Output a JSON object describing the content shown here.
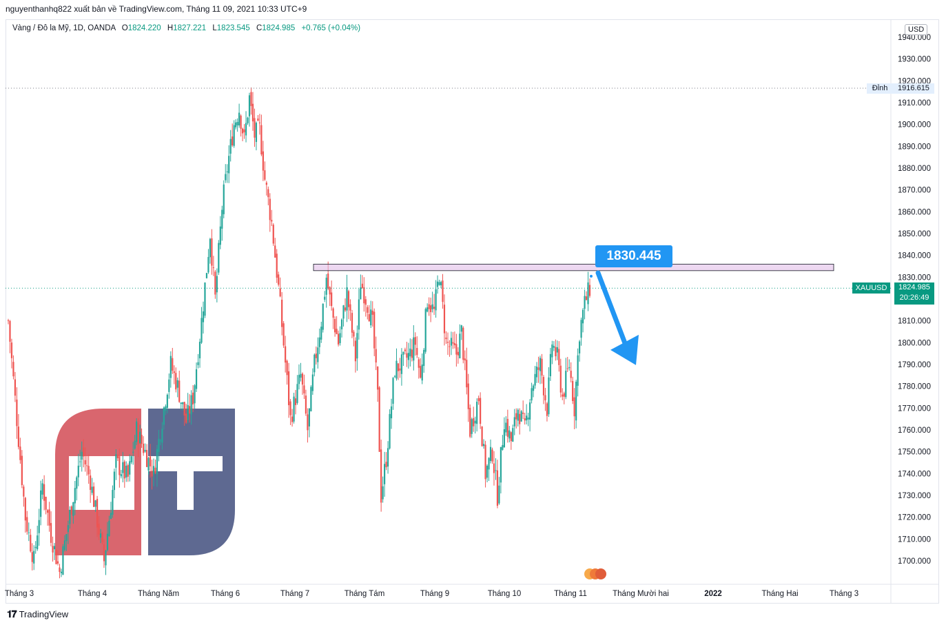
{
  "attribution": "nguyenthanhq822 xuất bản về TradingView.com, Tháng 11 09, 2021 10:33 UTC+9",
  "legend": {
    "symbol": "Vàng / Đô la Mỹ, 1D, OANDA",
    "o_label": "O",
    "o_value": "1824.220",
    "h_label": "H",
    "h_value": "1827.221",
    "l_label": "L",
    "l_value": "1823.545",
    "c_label": "C",
    "c_value": "1824.985",
    "change": "+0.765 (+0.04%)"
  },
  "currency": "USD",
  "high_marker": {
    "label": "Đỉnh",
    "value": "1916.615"
  },
  "current": {
    "symbol": "XAUUSD",
    "price": "1824.985",
    "countdown": "20:26:49"
  },
  "callout": "1830.445",
  "footer": "TradingView",
  "colors": {
    "up": "#26a69a",
    "down": "#ef5350",
    "accent": "#2196f3",
    "zone": "#e1bee7"
  },
  "watermark": {
    "left_letter": "G",
    "right_letter": "T",
    "left_color": "#d9666e",
    "right_color": "#5e6991"
  },
  "chart_data": {
    "type": "candlestick",
    "title": "",
    "ylim": [
      1692,
      1952
    ],
    "y_ticks": [
      "1940.000",
      "1930.000",
      "1920.000",
      "1910.000",
      "1900.000",
      "1890.000",
      "1880.000",
      "1870.000",
      "1860.000",
      "1850.000",
      "1840.000",
      "1830.000",
      "1820.000",
      "1810.000",
      "1800.000",
      "1790.000",
      "1780.000",
      "1770.000",
      "1760.000",
      "1750.000",
      "1740.000",
      "1730.000",
      "1720.000",
      "1710.000",
      "1700.000"
    ],
    "x_ticks": [
      "Tháng 3",
      "Tháng 4",
      "Tháng Năm",
      "Tháng 6",
      "Tháng 7",
      "Tháng Tám",
      "Tháng 9",
      "Tháng 10",
      "Tháng 11",
      "Tháng Mười hai",
      "2022",
      "Tháng Hai",
      "Tháng 3"
    ],
    "x_tick_bold": [
      false,
      false,
      false,
      false,
      false,
      false,
      false,
      false,
      false,
      false,
      true,
      false,
      false
    ],
    "high_line": 1916.615,
    "last_price": 1824.985,
    "resistance_zone": [
      1833,
      1836
    ],
    "projection_arrow": {
      "from_price": 1832,
      "to_price": 1791
    },
    "close_path": [
      [
        0,
        1810
      ],
      [
        5,
        1765
      ],
      [
        10,
        1720
      ],
      [
        15,
        1700
      ],
      [
        20,
        1735
      ],
      [
        25,
        1712
      ],
      [
        30,
        1695
      ],
      [
        38,
        1730
      ],
      [
        43,
        1750
      ],
      [
        48,
        1737
      ],
      [
        56,
        1700
      ],
      [
        63,
        1745
      ],
      [
        70,
        1738
      ],
      [
        75,
        1760
      ],
      [
        80,
        1750
      ],
      [
        85,
        1740
      ],
      [
        90,
        1765
      ],
      [
        95,
        1790
      ],
      [
        99,
        1780
      ],
      [
        104,
        1764
      ],
      [
        108,
        1775
      ],
      [
        113,
        1810
      ],
      [
        118,
        1850
      ],
      [
        121,
        1820
      ],
      [
        125,
        1862
      ],
      [
        128,
        1880
      ],
      [
        132,
        1900
      ],
      [
        135,
        1907
      ],
      [
        138,
        1893
      ],
      [
        141,
        1912
      ],
      [
        144,
        1895
      ],
      [
        147,
        1898
      ],
      [
        150,
        1875
      ],
      [
        154,
        1855
      ],
      [
        158,
        1825
      ],
      [
        160,
        1808
      ],
      [
        165,
        1765
      ],
      [
        171,
        1785
      ],
      [
        175,
        1760
      ],
      [
        179,
        1790
      ],
      [
        183,
        1810
      ],
      [
        186,
        1830
      ],
      [
        189,
        1815
      ],
      [
        193,
        1800
      ],
      [
        198,
        1823
      ],
      [
        203,
        1793
      ],
      [
        206,
        1828
      ],
      [
        210,
        1818
      ],
      [
        213,
        1808
      ],
      [
        216,
        1775
      ],
      [
        218,
        1730
      ],
      [
        221,
        1747
      ],
      [
        226,
        1788
      ],
      [
        230,
        1790
      ],
      [
        235,
        1795
      ],
      [
        238,
        1800
      ],
      [
        241,
        1783
      ],
      [
        245,
        1820
      ],
      [
        249,
        1814
      ],
      [
        252,
        1832
      ],
      [
        256,
        1800
      ],
      [
        262,
        1795
      ],
      [
        265,
        1805
      ],
      [
        270,
        1760
      ],
      [
        275,
        1775
      ],
      [
        279,
        1740
      ],
      [
        283,
        1750
      ],
      [
        286,
        1730
      ],
      [
        290,
        1765
      ],
      [
        294,
        1755
      ],
      [
        298,
        1770
      ],
      [
        302,
        1760
      ],
      [
        306,
        1780
      ],
      [
        311,
        1790
      ],
      [
        315,
        1770
      ],
      [
        318,
        1800
      ],
      [
        321,
        1793
      ],
      [
        324,
        1775
      ],
      [
        328,
        1790
      ],
      [
        331,
        1770
      ],
      [
        334,
        1805
      ],
      [
        337,
        1818
      ],
      [
        340,
        1825
      ]
    ]
  }
}
